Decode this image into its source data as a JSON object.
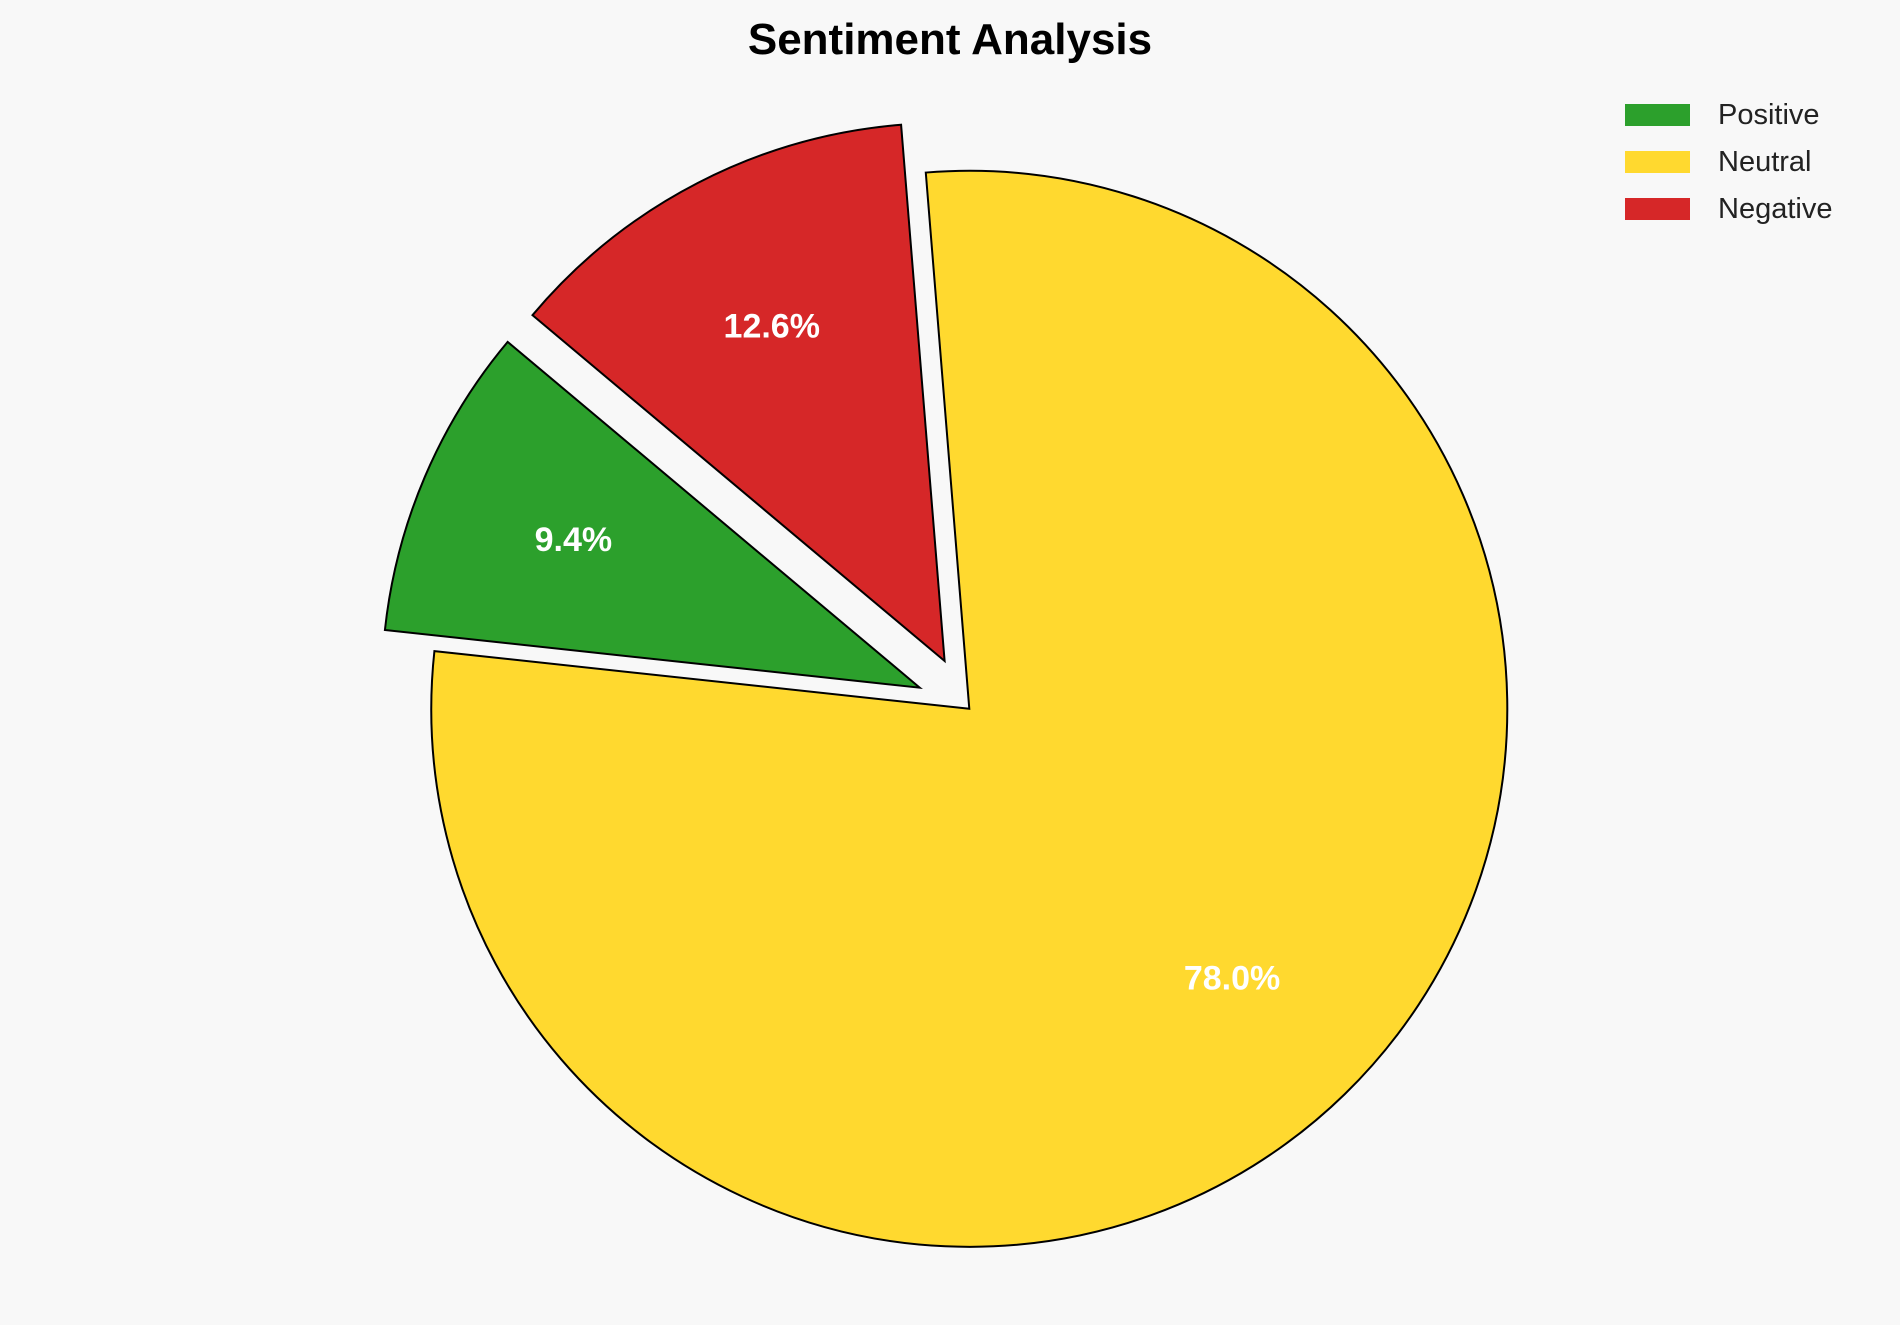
{
  "chart_data": {
    "type": "pie",
    "title": "Sentiment Analysis",
    "categories": [
      "Positive",
      "Neutral",
      "Negative"
    ],
    "values": [
      9.4,
      78.0,
      12.6
    ],
    "colors": [
      "#2ca02c",
      "#ffd92f",
      "#d62728"
    ],
    "explode": [
      0.1,
      0,
      0.1
    ],
    "start_angle": 140,
    "direction": "counterclockwise",
    "edge_color": "#000000",
    "label_color": "#ffffff",
    "legend_position": "top-right"
  }
}
